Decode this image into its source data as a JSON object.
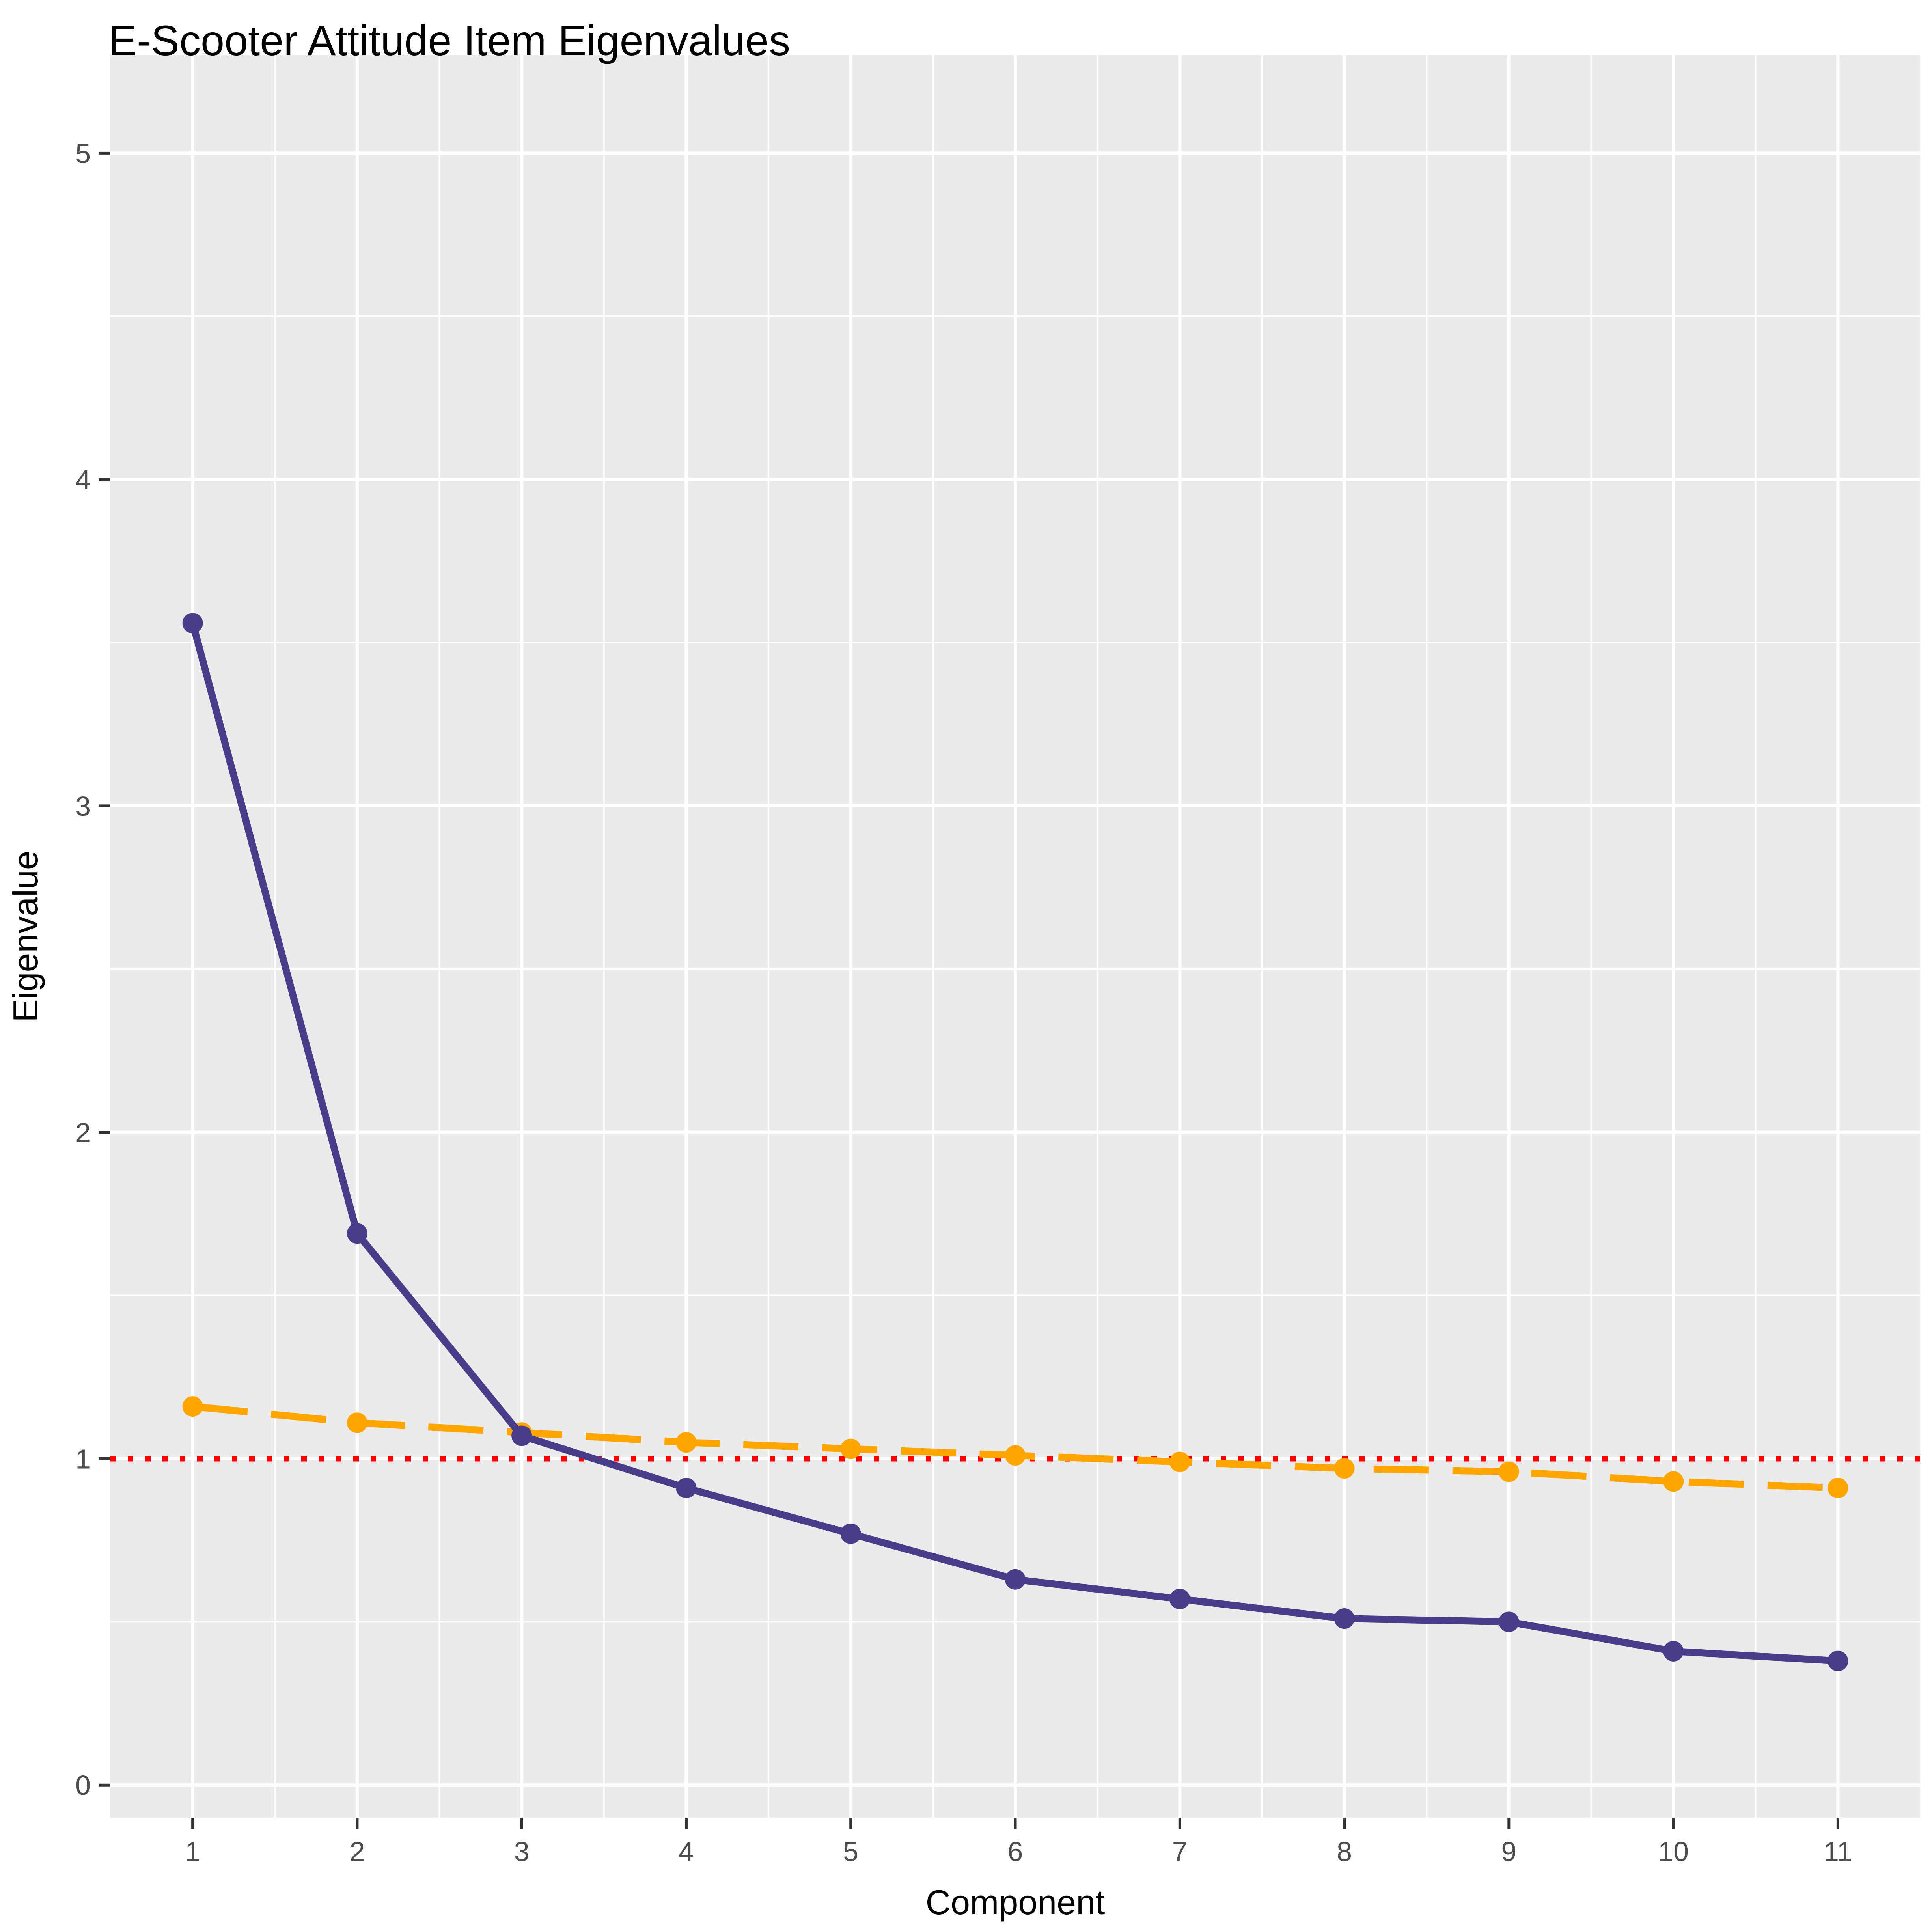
{
  "chart_data": {
    "type": "line",
    "title": "E-Scooter Attitude Item Eigenvalues",
    "xlabel": "Component",
    "ylabel": "Eigenvalue",
    "x": [
      1,
      2,
      3,
      4,
      5,
      6,
      7,
      8,
      9,
      10,
      11
    ],
    "xticks": [
      "1",
      "2",
      "3",
      "4",
      "5",
      "6",
      "7",
      "8",
      "9",
      "10",
      "11"
    ],
    "yticks": [
      "0",
      "1",
      "2",
      "3",
      "4",
      "5"
    ],
    "xlim": [
      0.5,
      11.5
    ],
    "ylim": [
      -0.1,
      5.3
    ],
    "grid": true,
    "series": [
      {
        "values": [
          3.56,
          1.69,
          1.07,
          0.91,
          0.77,
          0.63,
          0.57,
          0.51,
          0.5,
          0.41,
          0.38
        ],
        "color": "#483D8B",
        "style": "solid"
      },
      {
        "values": [
          1.16,
          1.11,
          1.08,
          1.05,
          1.03,
          1.01,
          0.99,
          0.97,
          0.96,
          0.93,
          0.91
        ],
        "color": "#FFA500",
        "style": "dashed"
      }
    ],
    "reference_line": {
      "y": 1,
      "color": "#FF0000",
      "style": "dotted"
    },
    "panel_background": "#EBEBEB",
    "grid_color": "#FFFFFF"
  }
}
